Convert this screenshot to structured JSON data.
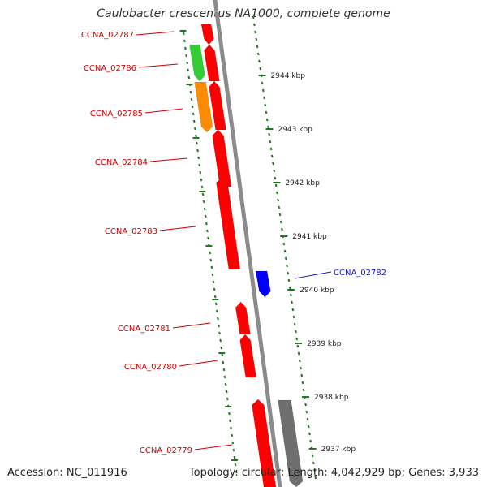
{
  "title": "Caulobacter crescentus NA1000, complete genome",
  "footer": {
    "accession": "Accession: NC_011916",
    "topology": "Topology: circular; Length: 4,042,929 bp; Genes: 3,933"
  },
  "colors": {
    "cds": "#ff0000",
    "cds_reverse": "#0000ff",
    "gene_green": "#33cc33",
    "gene_orange": "#ff8c00",
    "gene_gray": "#6e6e6e",
    "ruler": "#1f7a1f",
    "label_red": "#cc0000",
    "label_blue": "#1a1acc"
  },
  "ruler_labels": [
    "2944 kbp",
    "2943 kbp",
    "2942 kbp",
    "2941 kbp",
    "2940 kbp",
    "2939 kbp",
    "2938 kbp",
    "2937 kbp"
  ],
  "genes": [
    {
      "label": "CCNA_02787",
      "color": "red"
    },
    {
      "label": "CCNA_02786",
      "color": "red"
    },
    {
      "label": "CCNA_02785",
      "color": "red"
    },
    {
      "label": "CCNA_02784",
      "color": "red"
    },
    {
      "label": "CCNA_02783",
      "color": "red"
    },
    {
      "label": "CCNA_02782",
      "color": "blue"
    },
    {
      "label": "CCNA_02781",
      "color": "red"
    },
    {
      "label": "CCNA_02780",
      "color": "red"
    },
    {
      "label": "CCNA_02779",
      "color": "red"
    }
  ]
}
